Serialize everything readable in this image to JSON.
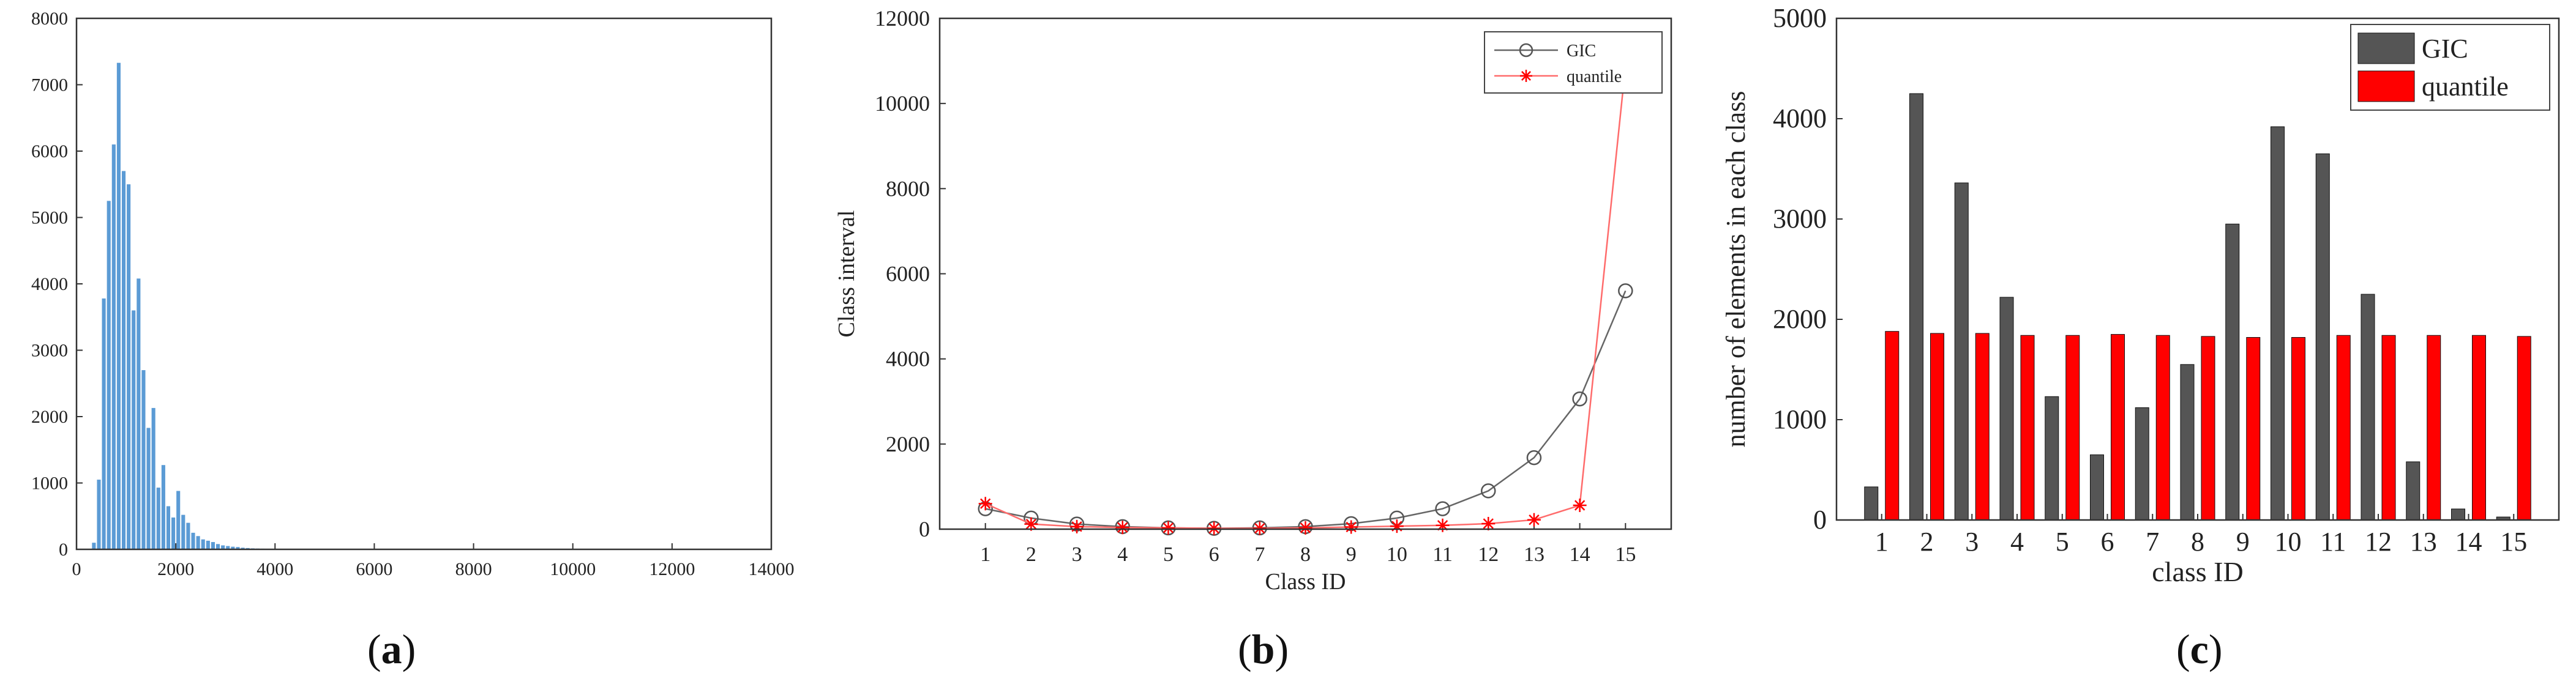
{
  "colors": {
    "histogram_bar": "#5b9bd5",
    "gic": "#555555",
    "gic_line": "#666666",
    "quantile": "#ff0000",
    "quantile_line": "#ff6b6b",
    "axis": "#333333"
  },
  "panel_labels": {
    "a": {
      "open": "(",
      "letter": "a",
      "close": ")"
    },
    "b": {
      "open": "(",
      "letter": "b",
      "close": ")"
    },
    "c": {
      "open": "(",
      "letter": "c",
      "close": ")"
    }
  },
  "chart_data": [
    {
      "id": "a",
      "type": "bar",
      "title": "",
      "xlabel": "",
      "ylabel": "",
      "xlim": [
        0,
        14000
      ],
      "ylim": [
        0,
        8000
      ],
      "xticks": [
        0,
        2000,
        4000,
        6000,
        8000,
        10000,
        12000,
        14000
      ],
      "yticks": [
        0,
        1000,
        2000,
        3000,
        4000,
        5000,
        6000,
        7000,
        8000
      ],
      "grid": false,
      "bin_width": 100,
      "bins": [
        {
          "x": 350,
          "y": 100
        },
        {
          "x": 450,
          "y": 1050
        },
        {
          "x": 550,
          "y": 3780
        },
        {
          "x": 650,
          "y": 5250
        },
        {
          "x": 750,
          "y": 6100
        },
        {
          "x": 850,
          "y": 7330
        },
        {
          "x": 950,
          "y": 5700
        },
        {
          "x": 1050,
          "y": 5500
        },
        {
          "x": 1150,
          "y": 3600
        },
        {
          "x": 1250,
          "y": 4080
        },
        {
          "x": 1350,
          "y": 2700
        },
        {
          "x": 1450,
          "y": 1830
        },
        {
          "x": 1550,
          "y": 2130
        },
        {
          "x": 1650,
          "y": 930
        },
        {
          "x": 1750,
          "y": 1270
        },
        {
          "x": 1850,
          "y": 650
        },
        {
          "x": 1950,
          "y": 480
        },
        {
          "x": 2050,
          "y": 880
        },
        {
          "x": 2150,
          "y": 520
        },
        {
          "x": 2250,
          "y": 400
        },
        {
          "x": 2350,
          "y": 250
        },
        {
          "x": 2450,
          "y": 200
        },
        {
          "x": 2550,
          "y": 150
        },
        {
          "x": 2650,
          "y": 130
        },
        {
          "x": 2750,
          "y": 110
        },
        {
          "x": 2850,
          "y": 80
        },
        {
          "x": 2950,
          "y": 60
        },
        {
          "x": 3050,
          "y": 50
        },
        {
          "x": 3150,
          "y": 40
        },
        {
          "x": 3250,
          "y": 35
        },
        {
          "x": 3350,
          "y": 25
        },
        {
          "x": 3450,
          "y": 20
        },
        {
          "x": 3550,
          "y": 15
        },
        {
          "x": 3650,
          "y": 12
        },
        {
          "x": 3750,
          "y": 10
        },
        {
          "x": 3850,
          "y": 8
        },
        {
          "x": 3950,
          "y": 6
        },
        {
          "x": 4050,
          "y": 5
        },
        {
          "x": 4150,
          "y": 4
        }
      ]
    },
    {
      "id": "b",
      "type": "line",
      "title": "",
      "xlabel": "Class ID",
      "ylabel": "Class interval",
      "categories": [
        "1",
        "2",
        "3",
        "4",
        "5",
        "6",
        "7",
        "8",
        "9",
        "10",
        "11",
        "12",
        "13",
        "14",
        "15"
      ],
      "ylim": [
        0,
        12000
      ],
      "yticks": [
        0,
        2000,
        4000,
        6000,
        8000,
        10000,
        12000
      ],
      "legend_position": "top-right",
      "grid": false,
      "series": [
        {
          "name": "GIC",
          "marker": "circle",
          "values": [
            480,
            260,
            120,
            60,
            30,
            20,
            30,
            60,
            130,
            260,
            480,
            900,
            1680,
            3060,
            5600
          ]
        },
        {
          "name": "quantile",
          "marker": "star",
          "values": [
            600,
            120,
            60,
            40,
            30,
            20,
            20,
            30,
            50,
            70,
            90,
            130,
            220,
            560,
            10880
          ]
        }
      ]
    },
    {
      "id": "c",
      "type": "bar",
      "title": "",
      "xlabel": "class ID",
      "ylabel": "number of elements in each class",
      "categories": [
        "1",
        "2",
        "3",
        "4",
        "5",
        "6",
        "7",
        "8",
        "9",
        "10",
        "11",
        "12",
        "13",
        "14",
        "15"
      ],
      "ylim": [
        0,
        5000
      ],
      "yticks": [
        0,
        1000,
        2000,
        3000,
        4000,
        5000
      ],
      "legend_position": "top-right",
      "grid": false,
      "series": [
        {
          "name": "GIC",
          "values": [
            330,
            4250,
            3360,
            2220,
            1230,
            650,
            1120,
            1550,
            2950,
            3920,
            3650,
            2250,
            580,
            110,
            30
          ]
        },
        {
          "name": "quantile",
          "values": [
            1880,
            1860,
            1860,
            1840,
            1840,
            1850,
            1840,
            1830,
            1820,
            1820,
            1840,
            1840,
            1840,
            1840,
            1830
          ]
        }
      ]
    }
  ]
}
